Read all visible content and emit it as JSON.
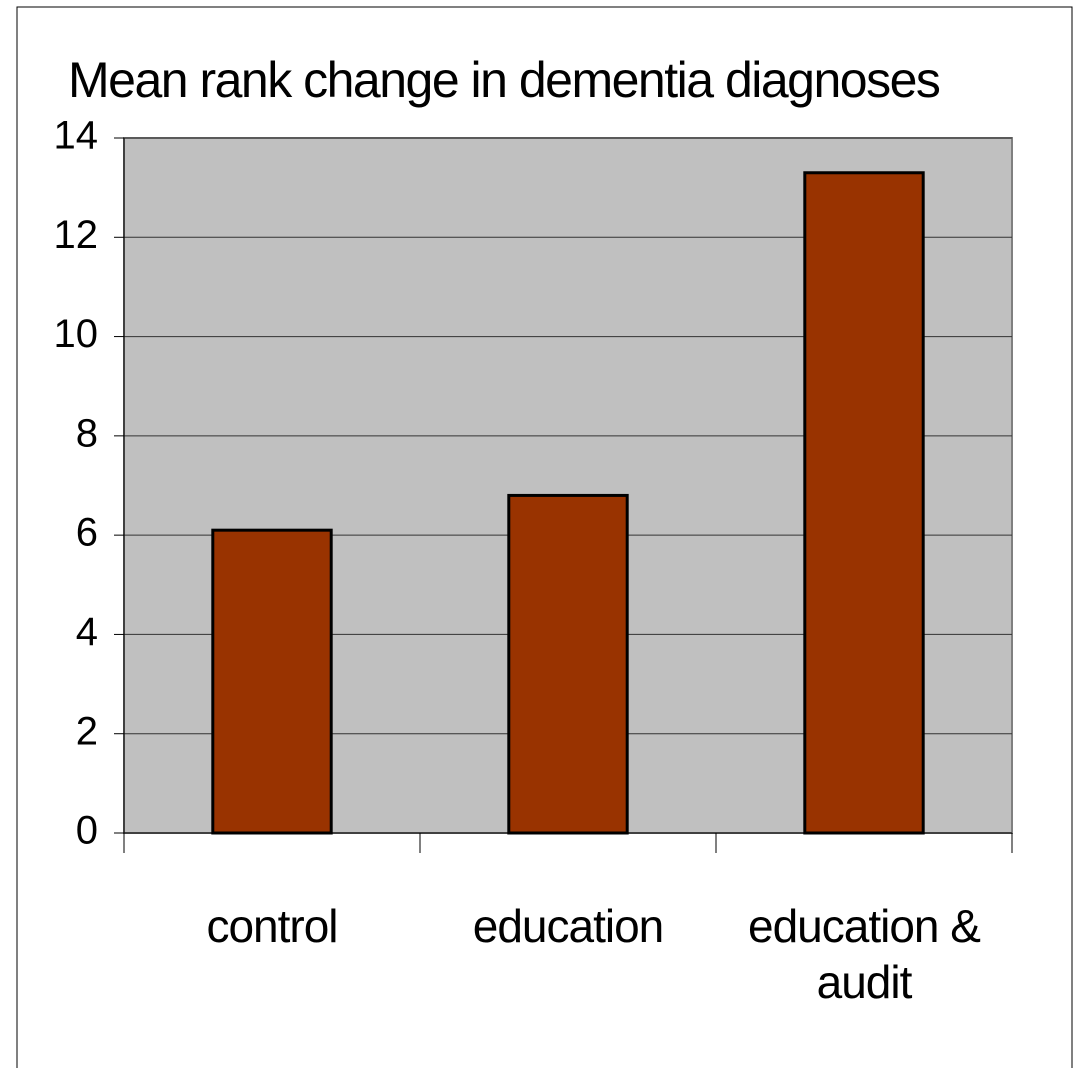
{
  "chart_data": {
    "type": "bar",
    "title": "Mean rank change in dementia diagnoses",
    "categories": [
      "control",
      "education",
      "education & audit"
    ],
    "values": [
      6.1,
      6.8,
      13.3
    ],
    "color": "#993300",
    "ylim": [
      0,
      14
    ],
    "yticks": [
      0,
      2,
      4,
      6,
      8,
      10,
      12,
      14
    ],
    "grid": true
  }
}
